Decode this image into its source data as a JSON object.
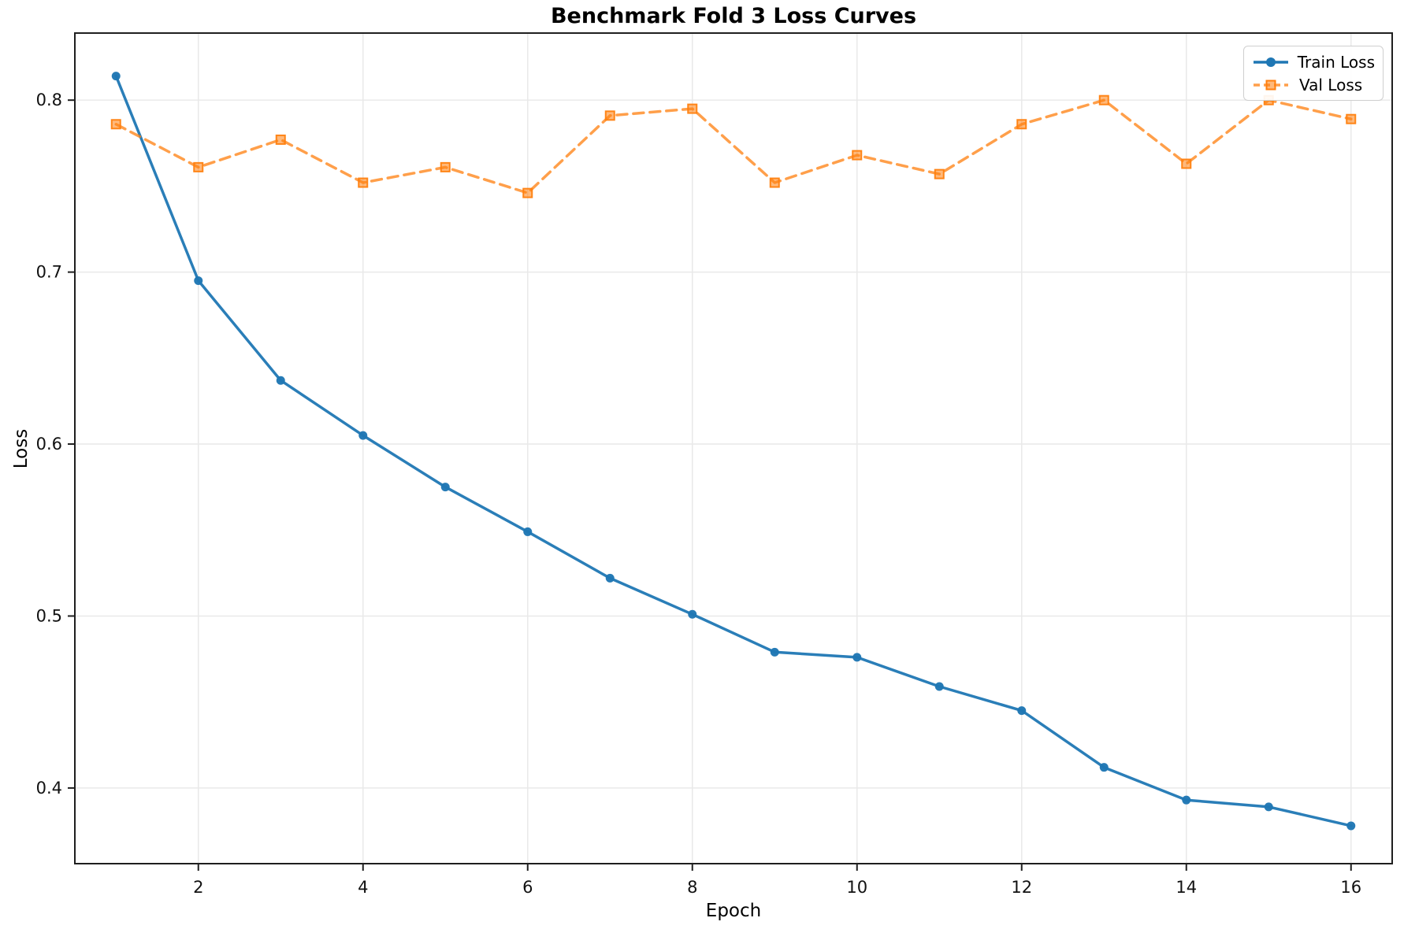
{
  "chart_data": {
    "type": "line",
    "title": "Benchmark Fold 3 Loss Curves",
    "xlabel": "Epoch",
    "ylabel": "Loss",
    "x": [
      1,
      2,
      3,
      4,
      5,
      6,
      7,
      8,
      9,
      10,
      11,
      12,
      13,
      14,
      15,
      16
    ],
    "series": [
      {
        "name": "Train Loss",
        "color": "#1f77b4",
        "style": "solid",
        "marker": "circle",
        "values": [
          0.814,
          0.695,
          0.637,
          0.605,
          0.575,
          0.549,
          0.522,
          0.501,
          0.479,
          0.476,
          0.459,
          0.445,
          0.412,
          0.393,
          0.389,
          0.378
        ]
      },
      {
        "name": "Val Loss",
        "color": "#ff7f0e",
        "style": "dashed",
        "marker": "square",
        "values": [
          0.786,
          0.761,
          0.777,
          0.752,
          0.761,
          0.746,
          0.791,
          0.795,
          0.752,
          0.768,
          0.757,
          0.786,
          0.8,
          0.763,
          0.8,
          0.789
        ]
      }
    ],
    "xlim": [
      0.5,
      16.5
    ],
    "ylim": [
      0.356,
      0.839
    ],
    "x_ticks": [
      2,
      4,
      6,
      8,
      10,
      12,
      14,
      16
    ],
    "y_ticks": [
      0.4,
      0.5,
      0.6,
      0.7,
      0.8
    ],
    "grid": true,
    "legend_position": "upper right"
  },
  "colors": {
    "grid": "#e9e9e9",
    "spine": "#1f1f1f",
    "tick_text": "#111111",
    "background": "#ffffff"
  }
}
